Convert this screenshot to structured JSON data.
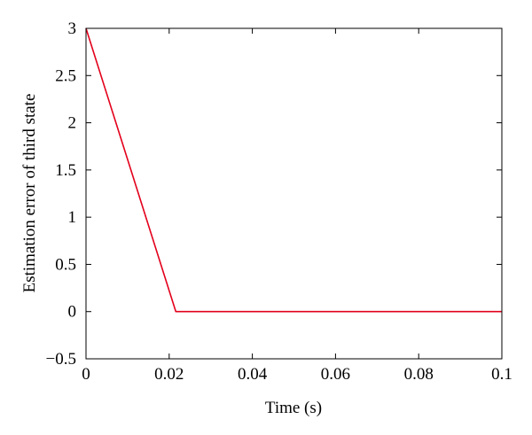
{
  "chart_data": {
    "type": "line",
    "title": "",
    "xlabel": "Time (s)",
    "ylabel": "Estimation error of third state",
    "xlim": [
      0,
      0.1
    ],
    "ylim": [
      -0.5,
      3
    ],
    "x_ticks": [
      0,
      0.02,
      0.04,
      0.06,
      0.08,
      0.1
    ],
    "x_tick_labels": [
      "0",
      "0.02",
      "0.04",
      "0.06",
      "0.08",
      "0.1"
    ],
    "y_ticks": [
      -0.5,
      0,
      0.5,
      1,
      1.5,
      2,
      2.5,
      3
    ],
    "y_tick_labels": [
      "−0.5",
      "0",
      "0.5",
      "1",
      "1.5",
      "2",
      "2.5",
      "3"
    ],
    "grid": false,
    "legend": "none",
    "series": [
      {
        "color": "#e3001b",
        "x": [
          0,
          0.0216,
          0.1
        ],
        "y": [
          3,
          0,
          0
        ]
      }
    ]
  }
}
